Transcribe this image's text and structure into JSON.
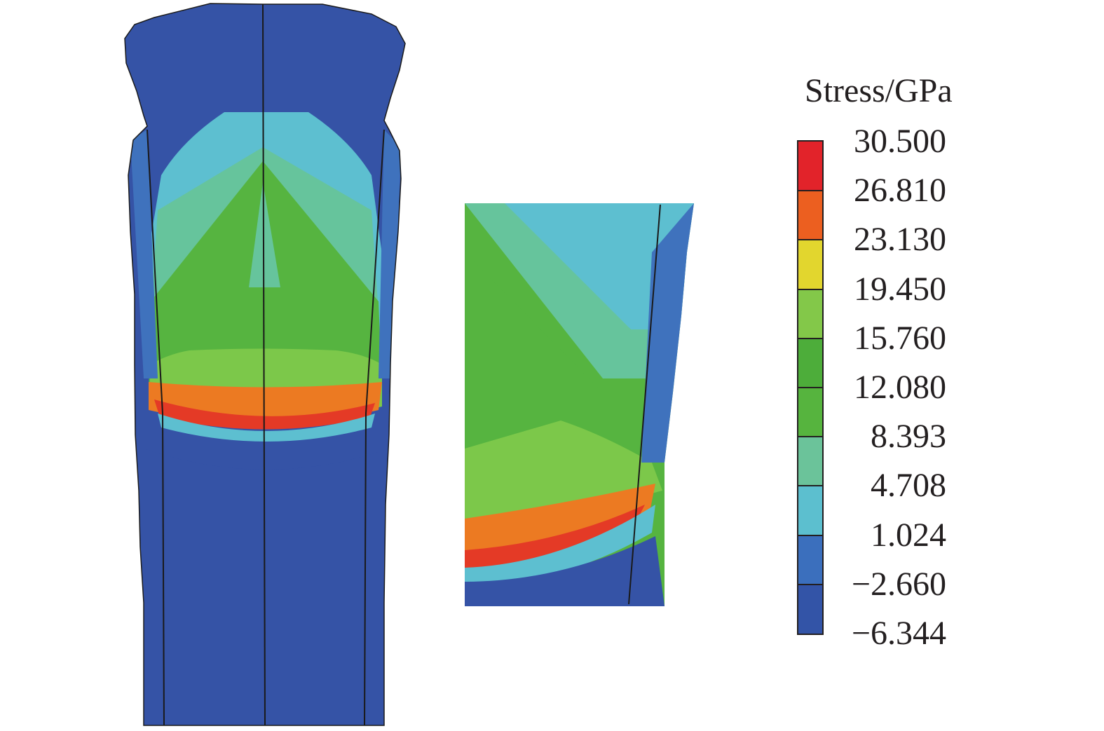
{
  "legend": {
    "title": "Stress/GPa",
    "labels": [
      "30.500",
      "26.810",
      "23.130",
      "19.450",
      "15.760",
      "12.080",
      "8.393",
      "4.708",
      "1.024",
      "−2.660",
      "−6.344"
    ],
    "band_colors": [
      "#e2232a",
      "#ec5f20",
      "#e2d62e",
      "#83c849",
      "#4dad3a",
      "#56b43e",
      "#6bc39a",
      "#5cbfcf",
      "#3b6fbd",
      "#3354a7"
    ]
  },
  "palette": {
    "background": "#ffffff",
    "deep_blue": "#3553a6",
    "mid_blue": "#3f72bd",
    "cyan": "#5dbfd0",
    "teal": "#66c49c",
    "green": "#56b440",
    "light_green": "#7cc84a",
    "orange": "#ec7a22",
    "red": "#e43a26",
    "outline": "#1a1a1a"
  }
}
